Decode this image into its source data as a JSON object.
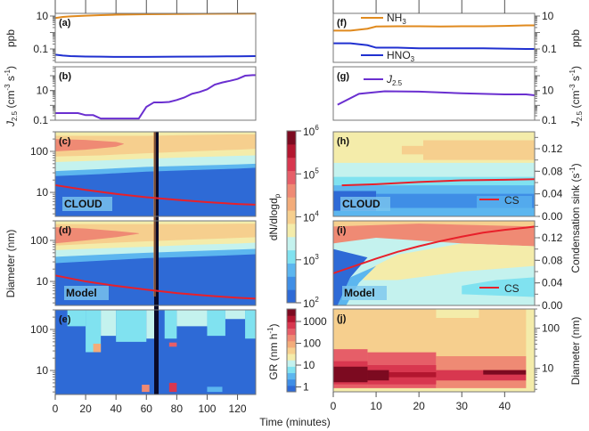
{
  "chart_data": [
    {
      "panel": "a",
      "type": "line",
      "label": "(a)",
      "ylabel": "ppb",
      "yscale": "log",
      "ylim": [
        0.0155,
        14.5
      ],
      "xlim": [
        0,
        132
      ],
      "yticks": [
        "10",
        "0.1"
      ],
      "series": [
        {
          "name": "NH3",
          "color": "#e08a1e",
          "x": [
            0,
            5,
            10,
            20,
            30,
            40,
            60,
            80,
            100,
            120,
            132
          ],
          "y": [
            7.5,
            8.8,
            9.5,
            10.5,
            11.3,
            12,
            12.8,
            13.3,
            13.6,
            13.9,
            14
          ]
        },
        {
          "name": "HNO3",
          "color": "#2030d0",
          "x": [
            0,
            5,
            10,
            20,
            30,
            40,
            60,
            80,
            100,
            120,
            132
          ],
          "y": [
            0.045,
            0.04,
            0.037,
            0.035,
            0.034,
            0.033,
            0.033,
            0.034,
            0.035,
            0.036,
            0.037
          ]
        }
      ]
    },
    {
      "panel": "b",
      "type": "line",
      "label": "(b)",
      "ylabel": "J2.5 (cm-3 s-1)",
      "yscale": "log",
      "ylim": [
        0.1,
        400
      ],
      "xlim": [
        0,
        132
      ],
      "yticks": [
        "10",
        "0.1"
      ],
      "series": [
        {
          "name": "J2.5",
          "color": "#6a2fd0",
          "x": [
            0,
            15,
            20,
            25,
            30,
            35,
            40,
            45,
            50,
            55,
            60,
            65,
            70,
            75,
            80,
            85,
            90,
            95,
            100,
            105,
            110,
            115,
            120,
            125,
            130,
            132
          ],
          "y": [
            0.3,
            0.3,
            0.22,
            0.22,
            0.13,
            0.13,
            0.13,
            0.13,
            0.13,
            0.13,
            0.8,
            1.6,
            1.6,
            1.7,
            2.3,
            3.4,
            6,
            8,
            12,
            25,
            35,
            45,
            60,
            100,
            110,
            110
          ]
        }
      ]
    },
    {
      "panel": "c",
      "type": "heatmap",
      "label": "(c)",
      "tag": "CLOUD",
      "ylabel": "Diameter (nm)",
      "yscale": "log",
      "ylim": [
        2.6,
        300
      ],
      "xlim": [
        0,
        132
      ],
      "yticks": [
        "100",
        "10"
      ],
      "minor_labels": [
        "2",
        "4",
        "2",
        "4"
      ],
      "overlay": {
        "name": "GR mode",
        "color": "#e8202a",
        "x": [
          0,
          20,
          40,
          60,
          80,
          100,
          120,
          132
        ],
        "y": [
          15,
          11.5,
          9.2,
          7.6,
          6.6,
          5.8,
          5.2,
          5
        ]
      }
    },
    {
      "panel": "d",
      "type": "heatmap",
      "label": "(d)",
      "tag": "Model",
      "yscale": "log",
      "ylim": [
        2.6,
        300
      ],
      "xlim": [
        0,
        132
      ],
      "yticks": [
        "100",
        "10"
      ],
      "overlay": {
        "color": "#e8202a",
        "x": [
          0,
          20,
          40,
          60,
          80,
          100,
          120,
          132
        ],
        "y": [
          14,
          10,
          7.8,
          6.3,
          5.2,
          4.5,
          4,
          3.8
        ]
      }
    },
    {
      "panel": "e",
      "type": "heatmap",
      "label": "(e)",
      "yscale": "log",
      "ylim": [
        2.6,
        300
      ],
      "xlim": [
        0,
        132
      ],
      "yticks": [
        "100",
        "10"
      ],
      "colorbar": "GR"
    },
    {
      "panel": "f",
      "type": "line",
      "label": "(f)",
      "ylabel": "ppb",
      "yscale": "log",
      "ylim": [
        0.0155,
        14.5
      ],
      "xlim": [
        0,
        47
      ],
      "yticks": [
        "10",
        "0.1"
      ],
      "series": [
        {
          "name": "NH3",
          "color": "#e08a1e",
          "x": [
            0,
            4,
            8,
            10,
            15,
            20,
            25,
            30,
            35,
            40,
            45,
            47
          ],
          "y": [
            1.3,
            1.3,
            1.7,
            2.3,
            2.4,
            2.4,
            2.3,
            2.4,
            2.4,
            2.5,
            2.7,
            2.7
          ]
        },
        {
          "name": "HNO3",
          "color": "#2030d0",
          "x": [
            0,
            4,
            8,
            10,
            15,
            20,
            25,
            30,
            35,
            40,
            45,
            47
          ],
          "y": [
            0.22,
            0.22,
            0.17,
            0.12,
            0.12,
            0.11,
            0.11,
            0.11,
            0.11,
            0.105,
            0.1,
            0.1
          ]
        }
      ]
    },
    {
      "panel": "g",
      "type": "line",
      "label": "(g)",
      "ylabel": "J2.5 (cm-3 s-1)",
      "yscale": "log",
      "ylim": [
        0.1,
        400
      ],
      "xlim": [
        0,
        47
      ],
      "yticks": [
        "10",
        "0.1"
      ],
      "series": [
        {
          "name": "J2.5",
          "color": "#6a2fd0",
          "x": [
            1,
            6,
            12,
            20,
            30,
            40,
            45,
            47
          ],
          "y": [
            1.1,
            6,
            9,
            8.5,
            6.5,
            5.5,
            5.5,
            4.8
          ]
        }
      ]
    },
    {
      "panel": "h",
      "type": "heatmap",
      "label": "(h)",
      "tag": "CLOUD",
      "ylabel": "Condensation sink (s-1)",
      "ylim": [
        0,
        0.15
      ],
      "xlim": [
        0,
        47
      ],
      "yticks": [
        "0.12",
        "0.08",
        "0.04",
        "0.00"
      ],
      "overlay": {
        "name": "CS",
        "color": "#e8202a",
        "x": [
          2,
          10,
          20,
          30,
          40,
          47
        ],
        "y": [
          0.055,
          0.057,
          0.061,
          0.064,
          0.065,
          0.066
        ]
      }
    },
    {
      "panel": "i",
      "type": "heatmap",
      "label": "(i)",
      "tag": "Model",
      "ylim": [
        0,
        0.15
      ],
      "xlim": [
        0,
        47
      ],
      "yticks": [
        "0.12",
        "0.08",
        "0.04",
        "0.00"
      ],
      "overlay": {
        "name": "CS",
        "color": "#e8202a",
        "x": [
          0,
          5,
          10,
          15,
          20,
          25,
          30,
          35,
          40,
          45,
          47
        ],
        "y": [
          0.057,
          0.07,
          0.083,
          0.095,
          0.105,
          0.114,
          0.122,
          0.129,
          0.134,
          0.138,
          0.14
        ]
      }
    },
    {
      "panel": "j",
      "type": "heatmap",
      "label": "(j)",
      "ylabel": "Diameter (nm)",
      "yscale": "log",
      "ylim": [
        2.6,
        300
      ],
      "xlim": [
        0,
        47
      ],
      "yticks": [
        "100",
        "10"
      ]
    }
  ],
  "colorbars": {
    "dn": {
      "label": "dN/dlogd",
      "label_sub": "p",
      "scale": "log",
      "range": [
        100,
        1000000
      ],
      "ticks": [
        {
          "b": "10",
          "e": "6"
        },
        {
          "b": "10",
          "e": "5"
        },
        {
          "b": "10",
          "e": "4"
        },
        {
          "b": "10",
          "e": "3"
        },
        {
          "b": "10",
          "e": "2"
        }
      ]
    },
    "gr": {
      "label": "GR (nm h",
      "label_sup": "-1",
      "label_end": ")",
      "scale": "log",
      "range": [
        0.6,
        5000
      ],
      "ticks": [
        "1000",
        "100",
        "10",
        "1"
      ]
    },
    "colors": [
      "#2e6ad6",
      "#3f8ee6",
      "#5cb6ef",
      "#80e2f0",
      "#c4f2ee",
      "#f4ecaa",
      "#f6cf8e",
      "#f3ac7a",
      "#ef8a74",
      "#e65e68",
      "#d8374f",
      "#b3162f",
      "#7c0a20"
    ]
  },
  "xaxis": {
    "label": "Time (minutes)",
    "left_ticks": [
      "0",
      "20",
      "40",
      "60",
      "80",
      "100",
      "120"
    ],
    "right_ticks": [
      "0",
      "10",
      "20",
      "30",
      "40"
    ]
  },
  "legend": {
    "nh3": "NH",
    "nh3_sub": "3",
    "hno3": "HNO",
    "hno3_sub": "3",
    "j": "J",
    "j_sub": "2.5",
    "cs": "CS"
  },
  "ylabels": {
    "ppb": "ppb",
    "j": "J",
    "j_sub": "2.5",
    "j_unit": " (cm",
    "j_sup1": "-3",
    "j_mid": " s",
    "j_sup2": "-1",
    "j_end": ")",
    "diam": "Diameter (nm)",
    "cs": "Condensation sink (s",
    "cs_sup": "-1",
    "cs_end": ")"
  }
}
